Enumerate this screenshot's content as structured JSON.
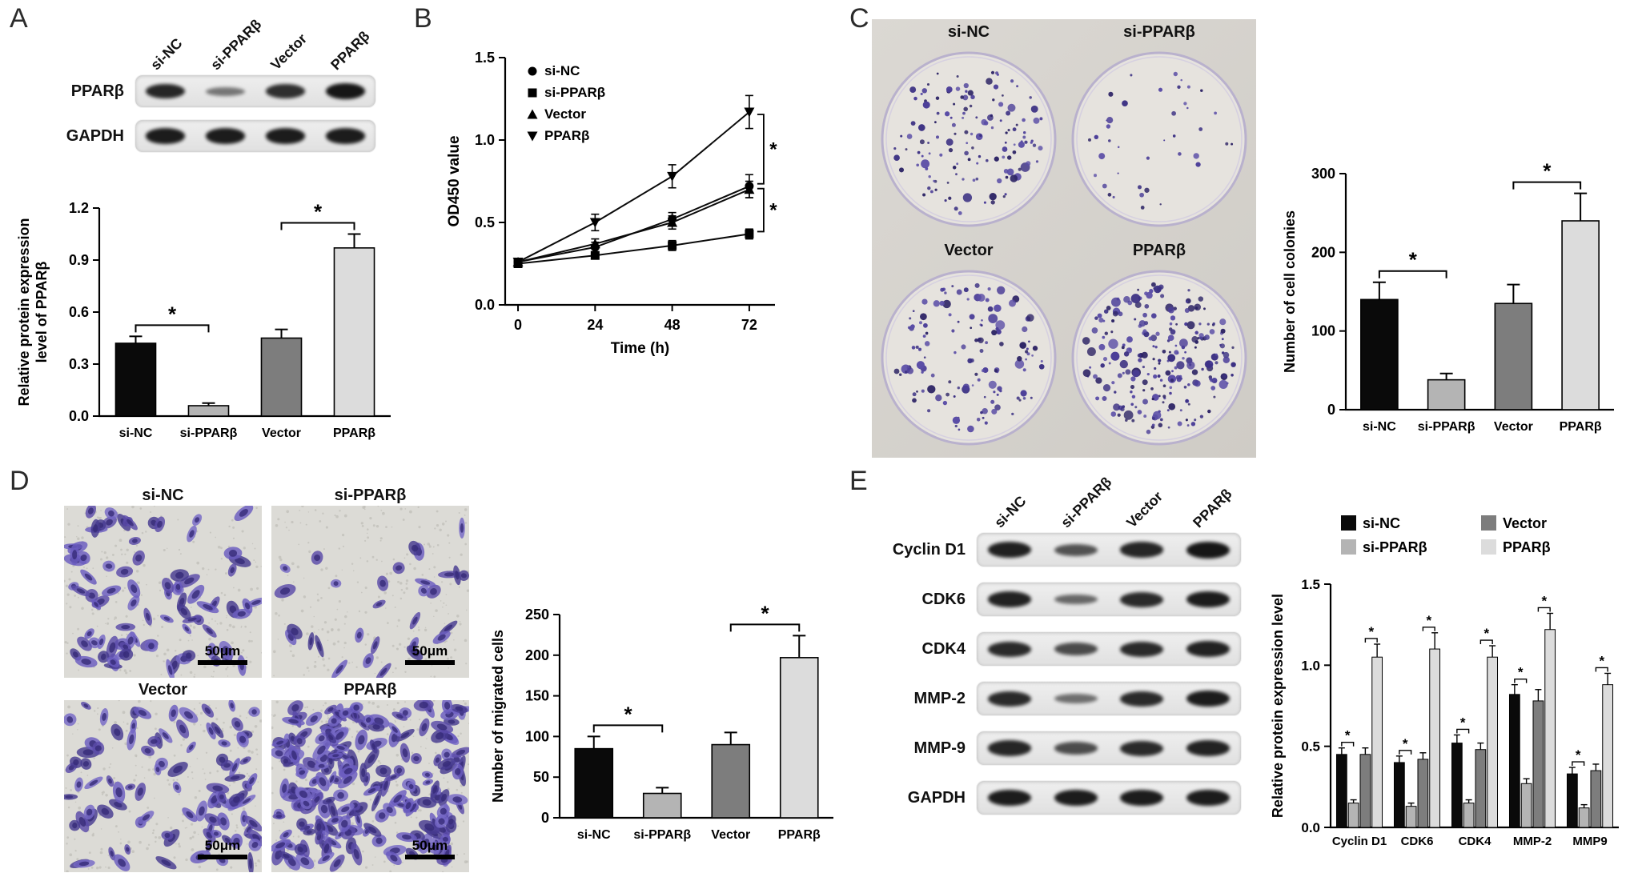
{
  "figure": {
    "background": "#ffffff",
    "group_names": [
      "si-NC",
      "si-PPARβ",
      "Vector",
      "PPARβ"
    ],
    "group_colors": {
      "si-NC": "#0a0a0a",
      "si-PPARβ": "#b4b4b4",
      "Vector": "#7d7d7d",
      "PPARβ": "#dcdcdc"
    },
    "panels": {
      "A": {
        "label": "A",
        "blot": {
          "lane_labels": [
            "si-NC",
            "si-PPARβ",
            "Vector",
            "PPARβ"
          ],
          "rows": [
            {
              "label": "PPARβ",
              "band_intensities": [
                0.88,
                0.3,
                0.82,
                1.0
              ]
            },
            {
              "label": "GAPDH",
              "band_intensities": [
                0.95,
                0.95,
                0.95,
                0.95
              ]
            }
          ]
        }
      },
      "B": {
        "label": "B"
      },
      "C": {
        "label": "C",
        "dishes": [
          {
            "label": "si-NC",
            "colony_count": 140,
            "size_factor": 1.15
          },
          {
            "label": "si-PPARβ",
            "colony_count": 40,
            "size_factor": 0.8
          },
          {
            "label": "Vector",
            "colony_count": 135,
            "size_factor": 1.1
          },
          {
            "label": "PPARβ",
            "colony_count": 240,
            "size_factor": 1.15
          }
        ]
      },
      "D": {
        "label": "D",
        "images": [
          {
            "label": "si-NC",
            "cell_count": 85,
            "scale_bar": "50μm"
          },
          {
            "label": "si-PPARβ",
            "cell_count": 30,
            "scale_bar": "50μm"
          },
          {
            "label": "Vector",
            "cell_count": 95,
            "scale_bar": "50μm"
          },
          {
            "label": "PPARβ",
            "cell_count": 210,
            "scale_bar": "50μm"
          }
        ]
      },
      "E": {
        "label": "E",
        "blot": {
          "lane_labels": [
            "si-NC",
            "si-PPARβ",
            "Vector",
            "PPARβ"
          ],
          "rows": [
            {
              "label": "Cyclin D1",
              "band_intensities": [
                0.92,
                0.55,
                0.88,
                1.0
              ]
            },
            {
              "label": "CDK6",
              "band_intensities": [
                0.9,
                0.4,
                0.85,
                0.95
              ]
            },
            {
              "label": "CDK4",
              "band_intensities": [
                0.85,
                0.62,
                0.85,
                0.9
              ]
            },
            {
              "label": "MMP-2",
              "band_intensities": [
                0.85,
                0.35,
                0.85,
                0.95
              ]
            },
            {
              "label": "MMP-9",
              "band_intensities": [
                0.88,
                0.6,
                0.85,
                0.9
              ]
            },
            {
              "label": "GAPDH",
              "band_intensities": [
                0.95,
                0.95,
                0.95,
                0.95
              ]
            }
          ]
        }
      }
    }
  },
  "chart_data": [
    {
      "panel": "A",
      "type": "bar",
      "categories": [
        "si-NC",
        "si-PPARβ",
        "Vector",
        "PPARβ"
      ],
      "values": [
        0.42,
        0.06,
        0.45,
        0.97
      ],
      "errors": [
        0.04,
        0.015,
        0.05,
        0.08
      ],
      "xlabel": "",
      "ylabel": "Relative protein expression\nlevel of PPARβ",
      "ylim": [
        0,
        1.2
      ],
      "yticks": [
        0,
        0.3,
        0.6,
        0.9,
        1.2
      ],
      "ytick_labels": [
        "0.0",
        "0.3",
        "0.6",
        "0.9",
        "1.2"
      ],
      "bar_colors": [
        "#0a0a0a",
        "#b4b4b4",
        "#7d7d7d",
        "#dcdcdc"
      ],
      "significance": [
        {
          "pair": [
            0,
            1
          ],
          "label": "*"
        },
        {
          "pair": [
            2,
            3
          ],
          "label": "*"
        }
      ]
    },
    {
      "panel": "B",
      "type": "line",
      "x": [
        0,
        24,
        48,
        72
      ],
      "xtick_labels": [
        "0",
        "24",
        "48",
        "72"
      ],
      "xlim": [
        -4,
        80
      ],
      "xlabel": "Time (h)",
      "ylabel": "OD450 value",
      "ylim": [
        0,
        1.5
      ],
      "yticks": [
        0,
        0.5,
        1.0,
        1.5
      ],
      "ytick_labels": [
        "0.0",
        "0.5",
        "1.0",
        "1.5"
      ],
      "legend_position": "top-left",
      "series": [
        {
          "name": "si-NC",
          "marker": "circle",
          "color": "#0a0a0a",
          "values": [
            0.26,
            0.35,
            0.52,
            0.72
          ],
          "errors": [
            0.02,
            0.03,
            0.04,
            0.07
          ]
        },
        {
          "name": "si-PPARβ",
          "marker": "square",
          "color": "#0a0a0a",
          "values": [
            0.25,
            0.3,
            0.36,
            0.43
          ],
          "errors": [
            0.02,
            0.02,
            0.03,
            0.03
          ]
        },
        {
          "name": "Vector",
          "marker": "triangle-up",
          "color": "#0a0a0a",
          "values": [
            0.26,
            0.37,
            0.5,
            0.7
          ],
          "errors": [
            0.02,
            0.03,
            0.04,
            0.05
          ]
        },
        {
          "name": "PPARβ",
          "marker": "triangle-down",
          "color": "#0a0a0a",
          "values": [
            0.26,
            0.5,
            0.78,
            1.17
          ],
          "errors": [
            0.02,
            0.05,
            0.07,
            0.1
          ]
        }
      ],
      "significance": [
        {
          "from_series": 3,
          "to_series": 0,
          "label": "*"
        },
        {
          "from_series": 0,
          "to_series": 1,
          "label": "*"
        }
      ]
    },
    {
      "panel": "C",
      "type": "bar",
      "categories": [
        "si-NC",
        "si-PPARβ",
        "Vector",
        "PPARβ"
      ],
      "values": [
        140,
        38,
        135,
        240
      ],
      "errors": [
        22,
        8,
        24,
        35
      ],
      "xlabel": "",
      "ylabel": "Number of cell colonies",
      "ylim": [
        0,
        300
      ],
      "yticks": [
        0,
        100,
        200,
        300
      ],
      "ytick_labels": [
        "0",
        "100",
        "200",
        "300"
      ],
      "bar_colors": [
        "#0a0a0a",
        "#b4b4b4",
        "#7d7d7d",
        "#dcdcdc"
      ],
      "significance": [
        {
          "pair": [
            0,
            1
          ],
          "label": "*"
        },
        {
          "pair": [
            2,
            3
          ],
          "label": "*"
        }
      ]
    },
    {
      "panel": "D",
      "type": "bar",
      "categories": [
        "si-NC",
        "si-PPARβ",
        "Vector",
        "PPARβ"
      ],
      "values": [
        85,
        30,
        90,
        197
      ],
      "errors": [
        15,
        7,
        15,
        27
      ],
      "xlabel": "",
      "ylabel": "Number of migrated cells",
      "ylim": [
        0,
        250
      ],
      "yticks": [
        0,
        50,
        100,
        150,
        200,
        250
      ],
      "ytick_labels": [
        "0",
        "50",
        "100",
        "150",
        "200",
        "250"
      ],
      "bar_colors": [
        "#0a0a0a",
        "#b4b4b4",
        "#7d7d7d",
        "#dcdcdc"
      ],
      "significance": [
        {
          "pair": [
            0,
            1
          ],
          "label": "*"
        },
        {
          "pair": [
            2,
            3
          ],
          "label": "*"
        }
      ]
    },
    {
      "panel": "E",
      "type": "grouped_bar",
      "categories": [
        "Cyclin D1",
        "CDK6",
        "CDK4",
        "MMP-2",
        "MMP9"
      ],
      "series": [
        {
          "name": "si-NC",
          "color": "#0a0a0a",
          "values": [
            0.45,
            0.4,
            0.52,
            0.82,
            0.33
          ],
          "errors": [
            0.04,
            0.04,
            0.05,
            0.06,
            0.04
          ]
        },
        {
          "name": "si-PPARβ",
          "color": "#b4b4b4",
          "values": [
            0.15,
            0.13,
            0.15,
            0.27,
            0.12
          ],
          "errors": [
            0.02,
            0.02,
            0.02,
            0.03,
            0.02
          ]
        },
        {
          "name": "Vector",
          "color": "#7d7d7d",
          "values": [
            0.45,
            0.42,
            0.48,
            0.78,
            0.35
          ],
          "errors": [
            0.04,
            0.04,
            0.04,
            0.07,
            0.04
          ]
        },
        {
          "name": "PPARβ",
          "color": "#dcdcdc",
          "values": [
            1.05,
            1.1,
            1.05,
            1.22,
            0.88
          ],
          "errors": [
            0.08,
            0.1,
            0.07,
            0.1,
            0.07
          ]
        }
      ],
      "xlabel": "",
      "ylabel": "Relative protein expression level",
      "ylim": [
        0,
        1.5
      ],
      "yticks": [
        0,
        0.5,
        1.0,
        1.5
      ],
      "ytick_labels": [
        "0.0",
        "0.5",
        "1.0",
        "1.5"
      ],
      "legend": {
        "rows": [
          [
            "si-NC",
            "Vector"
          ],
          [
            "si-PPARβ",
            "PPARβ"
          ]
        ]
      },
      "significance_pairs": [
        [
          0,
          1
        ],
        [
          2,
          3
        ]
      ],
      "significance_label": "*"
    }
  ]
}
